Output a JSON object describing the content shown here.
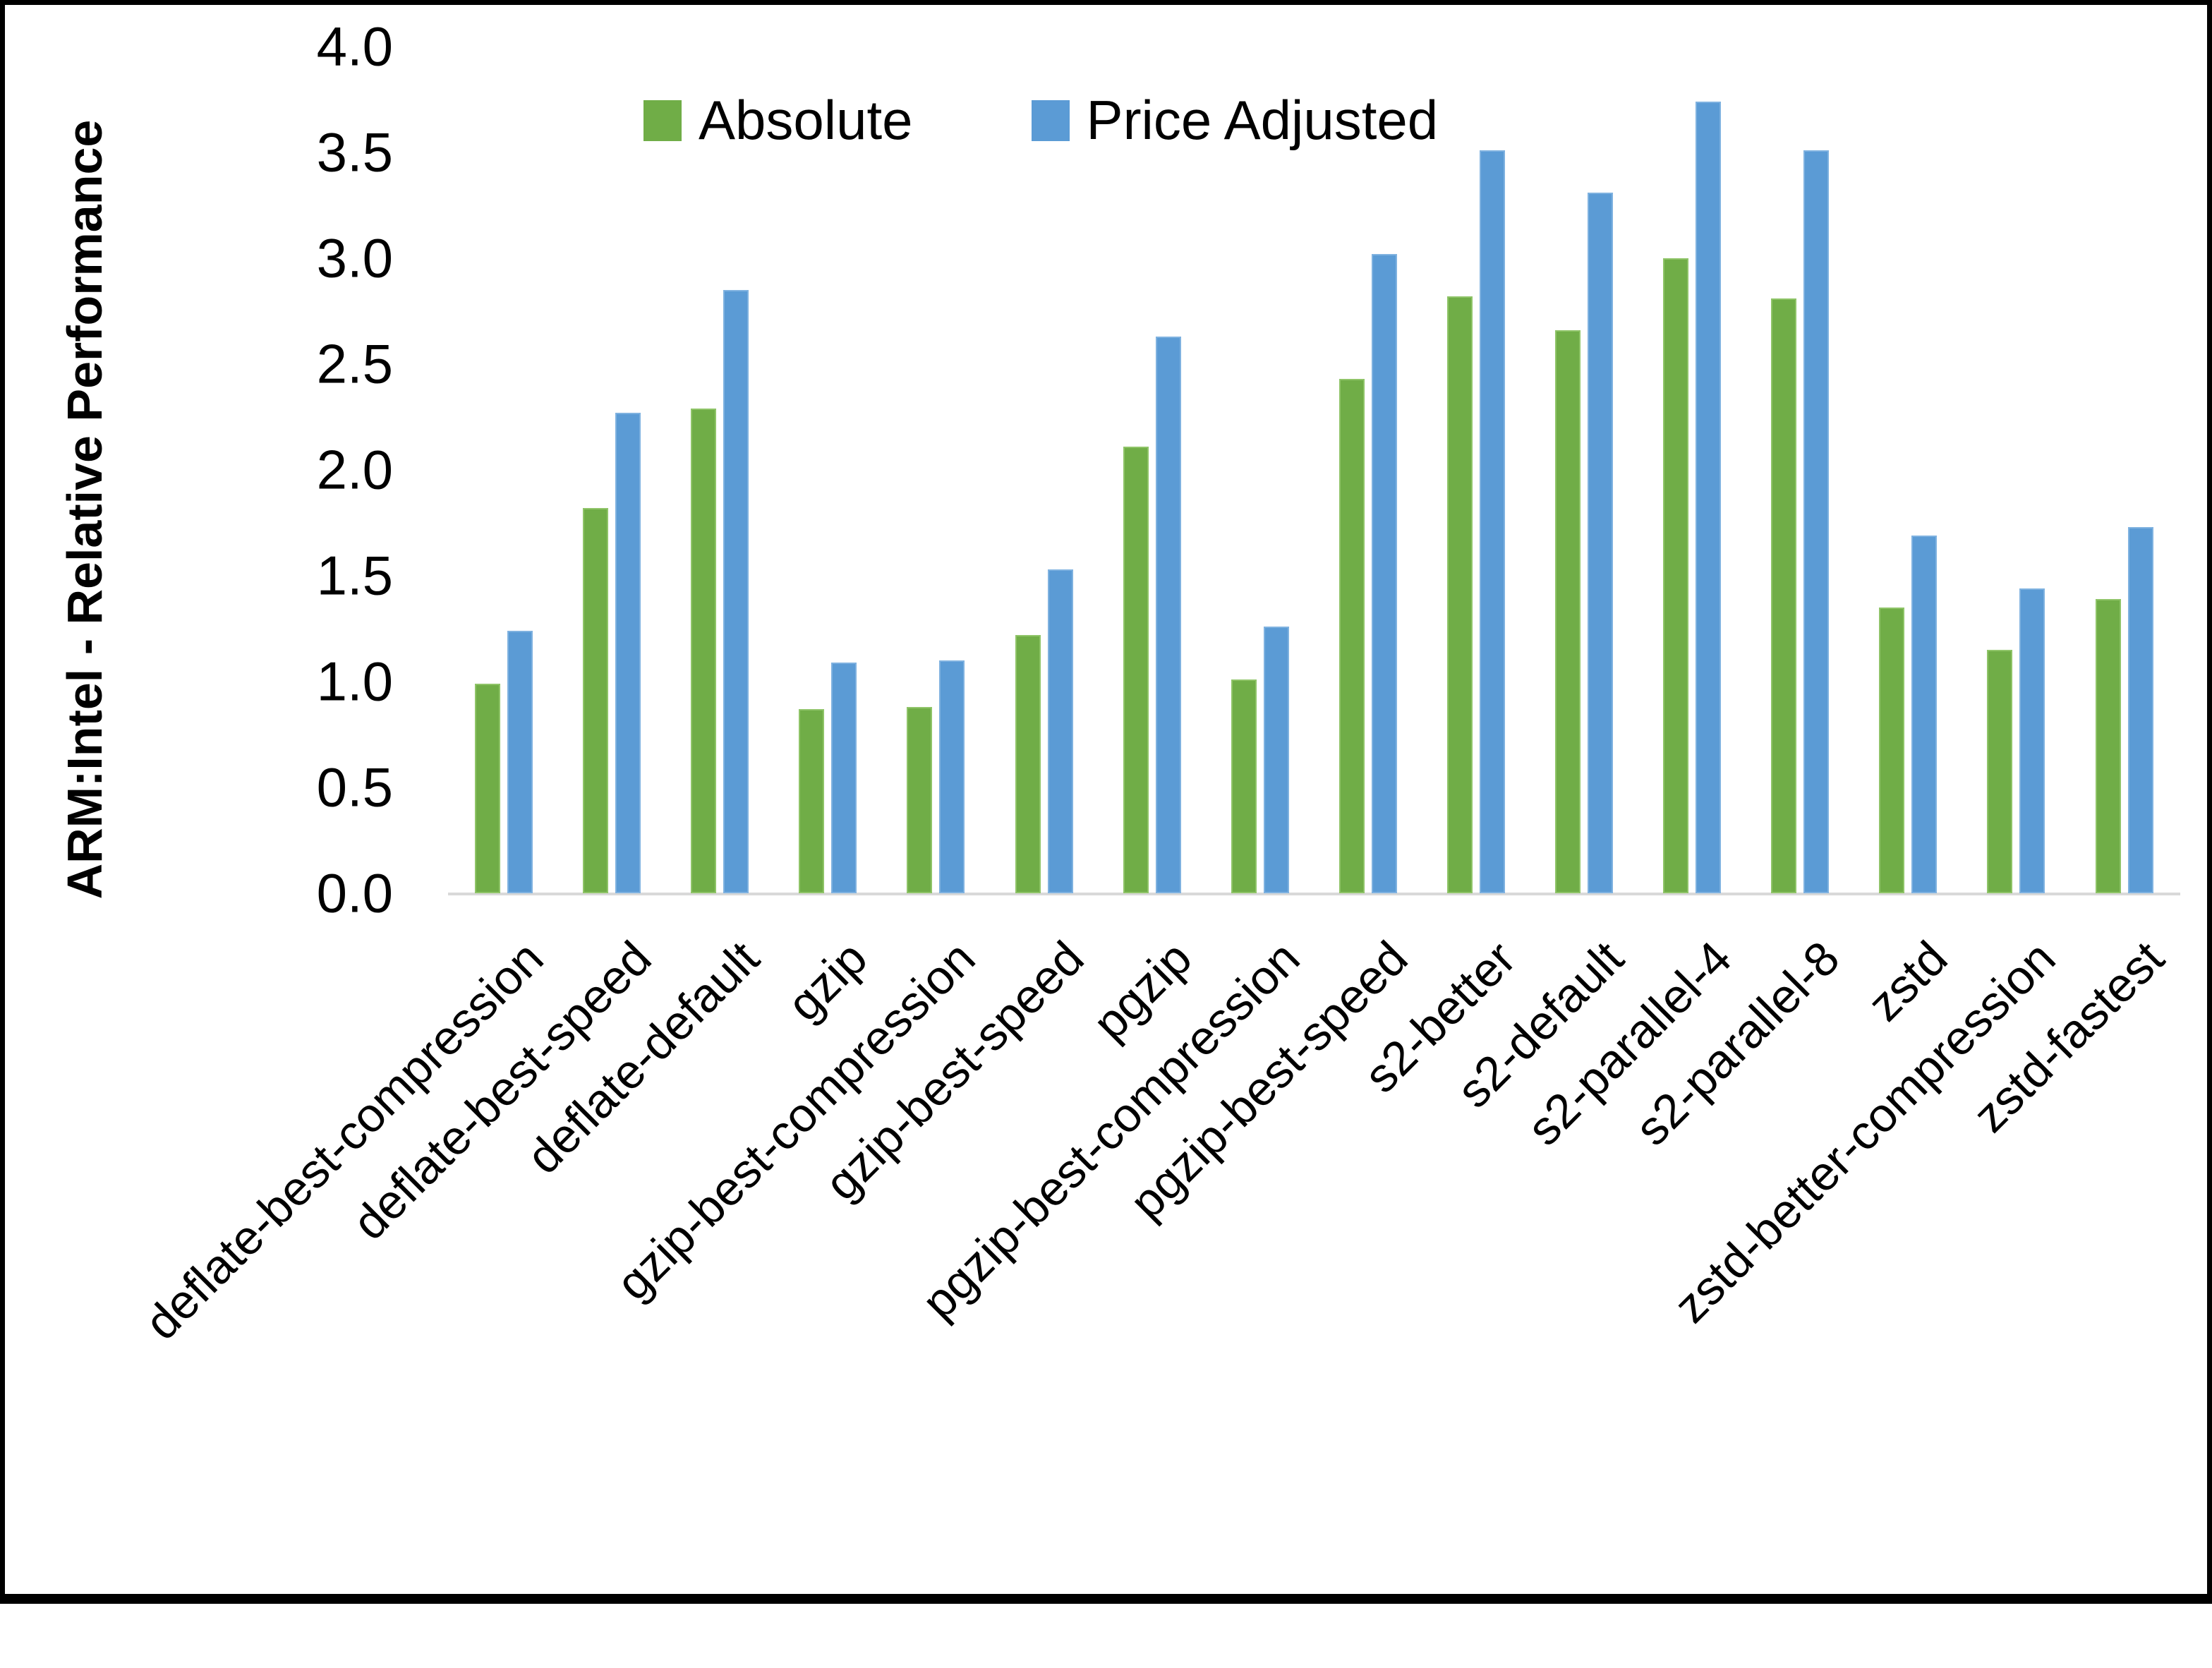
{
  "chart_data": {
    "type": "bar",
    "title": "",
    "ylabel": "ARM:Intel - Relative Performance",
    "xlabel": "",
    "ylim": [
      0.0,
      4.0
    ],
    "y_tick_step": 0.5,
    "y_ticks": [
      "0.0",
      "0.5",
      "1.0",
      "1.5",
      "2.0",
      "2.5",
      "3.0",
      "3.5",
      "4.0"
    ],
    "grid": "off",
    "legend_position": "top-center",
    "categories": [
      "deflate-best-compression",
      "deflate-best-speed",
      "deflate-default",
      "gzip",
      "gzip-best-compression",
      "gzip-best-speed",
      "pgzip",
      "pgzip-best-compression",
      "pgzip-best-speed",
      "s2-better",
      "s2-default",
      "s2-parallel-4",
      "s2-parallel-8",
      "zstd",
      "zstd-better-compression",
      "zstd-fastest"
    ],
    "series": [
      {
        "name": "Absolute",
        "color": "#70ad47",
        "values": [
          0.99,
          1.82,
          2.29,
          0.87,
          0.88,
          1.22,
          2.11,
          1.01,
          2.43,
          2.82,
          2.66,
          3.0,
          2.81,
          1.35,
          1.15,
          1.39
        ]
      },
      {
        "name": "Price Adjusted",
        "color": "#5b9bd5",
        "values": [
          1.24,
          2.27,
          2.85,
          1.09,
          1.1,
          1.53,
          2.63,
          1.26,
          3.02,
          3.51,
          3.31,
          3.74,
          3.51,
          1.69,
          1.44,
          1.73
        ]
      }
    ],
    "colors": {
      "axis_line": "#d9d9d9",
      "text": "#000000"
    }
  }
}
